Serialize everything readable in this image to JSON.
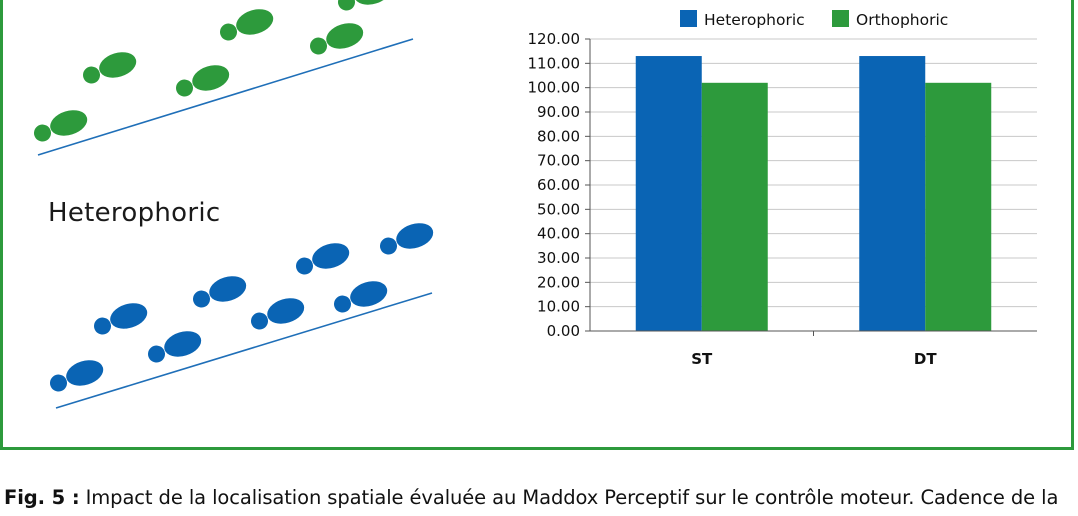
{
  "figure": {
    "group_label": "Heterophoric",
    "caption_head": "Fig. 5 :",
    "caption_body": " Impact de la localisation spatiale évaluée au Maddox Perceptif sur le contrôle moteur. Cadence de la"
  },
  "colors": {
    "heterophoric": "#0a64b4",
    "orthophoric": "#2d9a3c",
    "frame": "#2d9a3c",
    "line": "#1f6fb8",
    "grid": "#c8c8c8"
  },
  "icons": {
    "orthophoric_footprints": "green-footprint-icon",
    "heterophoric_footprints": "blue-footprint-icon"
  },
  "chart_data": {
    "type": "bar",
    "categories": [
      "ST",
      "DT"
    ],
    "series": [
      {
        "name": "Heterophoric",
        "values": [
          113,
          113
        ]
      },
      {
        "name": "Orthophoric",
        "values": [
          102,
          102
        ]
      }
    ],
    "ylim": [
      0,
      120
    ],
    "yticks": [
      "0.00",
      "10.00",
      "20.00",
      "30.00",
      "40.00",
      "50.00",
      "60.00",
      "70.00",
      "80.00",
      "90.00",
      "100.00",
      "110.00",
      "120.00"
    ],
    "grid": true,
    "legend_position": "top"
  }
}
